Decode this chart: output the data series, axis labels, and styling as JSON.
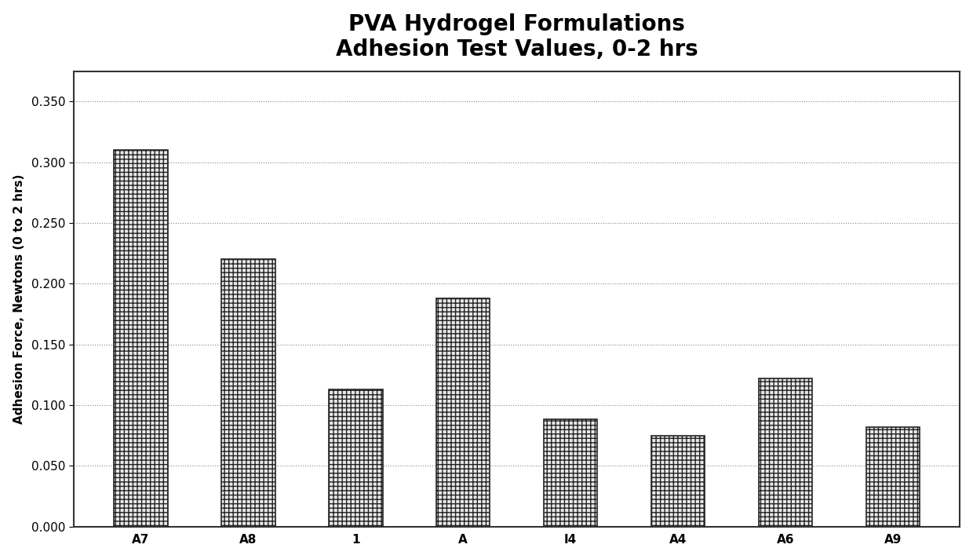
{
  "title_line1": "PVA Hydrogel Formulations",
  "title_line2": "Adhesion Test Values, 0-2 hrs",
  "categories": [
    "A7",
    "A8",
    "1",
    "A",
    "I4",
    "A4",
    "A6",
    "A9"
  ],
  "values": [
    0.31,
    0.22,
    0.113,
    0.188,
    0.088,
    0.075,
    0.122,
    0.082
  ],
  "ylabel": "Adhesion Force, Newtons (0 to 2 hrs)",
  "ylim": [
    0,
    0.375
  ],
  "yticks": [
    0.0,
    0.05,
    0.1,
    0.15,
    0.2,
    0.25,
    0.3,
    0.35
  ],
  "bar_color": "#e8e8e8",
  "bar_edge_color": "#222222",
  "hatch_pattern": "+++",
  "background_color": "#ffffff",
  "plot_bg_color": "#ffffff",
  "grid_color": "#888888",
  "border_color": "#333333",
  "title_fontsize": 20,
  "label_fontsize": 11,
  "tick_fontsize": 11,
  "bar_width": 0.5
}
